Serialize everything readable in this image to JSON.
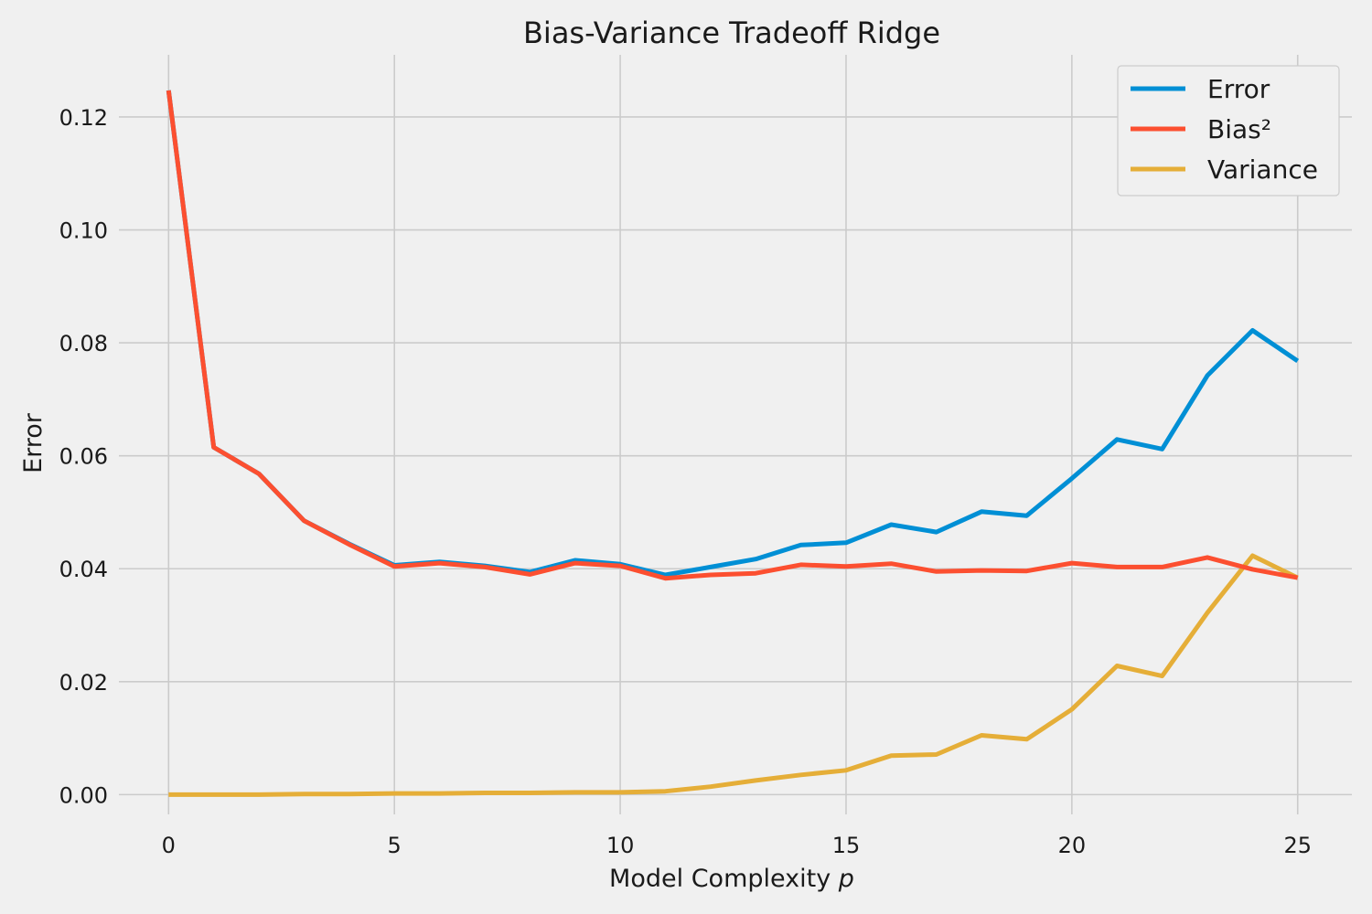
{
  "chart_data": {
    "type": "line",
    "title": "Bias-Variance Tradeoff Ridge",
    "xlabel": "Model Complexity",
    "xlabel_var": "p",
    "ylabel": "Error",
    "xlim": [
      -1.1,
      26.2
    ],
    "ylim": [
      -0.0035,
      0.131
    ],
    "xticks": [
      0,
      5,
      10,
      15,
      20,
      25
    ],
    "xtick_labels": [
      "0",
      "5",
      "10",
      "15",
      "20",
      "25"
    ],
    "yticks": [
      0.0,
      0.02,
      0.04,
      0.06,
      0.08,
      0.1,
      0.12
    ],
    "ytick_labels": [
      "0.00",
      "0.02",
      "0.04",
      "0.06",
      "0.08",
      "0.10",
      "0.12"
    ],
    "grid": true,
    "legend_position": "top-right",
    "x": [
      0,
      1,
      2,
      3,
      4,
      5,
      6,
      7,
      8,
      9,
      10,
      11,
      12,
      13,
      14,
      15,
      16,
      17,
      18,
      19,
      20,
      21,
      22,
      23,
      24,
      25
    ],
    "series": [
      {
        "name": "Error",
        "color": "#008fd5",
        "values": [
          0.1247,
          0.0615,
          0.0568,
          0.0485,
          0.0444,
          0.0406,
          0.0412,
          0.0405,
          0.0394,
          0.0415,
          0.0408,
          0.0389,
          0.0403,
          0.0417,
          0.0442,
          0.0446,
          0.0478,
          0.0465,
          0.0501,
          0.0494,
          0.056,
          0.0629,
          0.0612,
          0.0742,
          0.0822,
          0.0768
        ]
      },
      {
        "name": "Bias²",
        "color": "#fc4f30",
        "values": [
          0.1247,
          0.0615,
          0.0568,
          0.0485,
          0.0443,
          0.0404,
          0.041,
          0.0403,
          0.039,
          0.041,
          0.0405,
          0.0383,
          0.0389,
          0.0392,
          0.0407,
          0.0404,
          0.0409,
          0.0395,
          0.0397,
          0.0396,
          0.041,
          0.0403,
          0.0403,
          0.042,
          0.0399,
          0.0384
        ]
      },
      {
        "name": "Variance",
        "color": "#e5ae38",
        "values": [
          0.0,
          0.0,
          0.0,
          0.0001,
          0.0001,
          0.0002,
          0.0002,
          0.0003,
          0.0003,
          0.0004,
          0.0004,
          0.0006,
          0.0014,
          0.0025,
          0.0035,
          0.0043,
          0.0069,
          0.0071,
          0.0105,
          0.0098,
          0.0151,
          0.0228,
          0.021,
          0.0322,
          0.0423,
          0.0384
        ]
      }
    ]
  }
}
